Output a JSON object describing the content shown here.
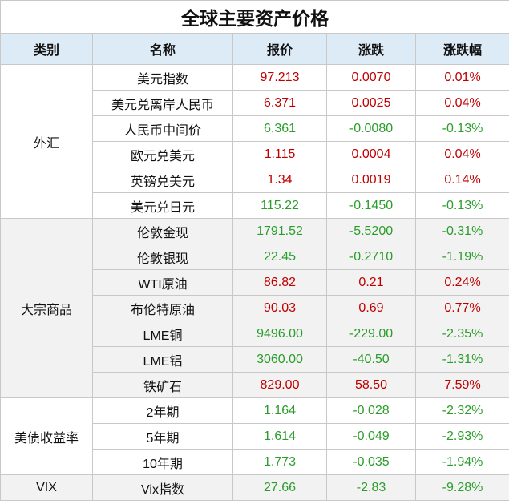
{
  "title": "全球主要资产价格",
  "header": [
    "类别",
    "名称",
    "报价",
    "涨跌",
    "涨跌幅"
  ],
  "colors": {
    "up": "#c00000",
    "down": "#2a9d2a",
    "header_bg": "#ddebf7",
    "shade_bg": "#f2f2f2"
  },
  "groups": [
    {
      "name": "外汇",
      "shaded": false,
      "rows": [
        [
          "美元指数",
          "97.213",
          "0.0070",
          "0.01%"
        ],
        [
          "美元兑离岸人民币",
          "6.371",
          "0.0025",
          "0.04%"
        ],
        [
          "人民币中间价",
          "6.361",
          "-0.0080",
          "-0.13%"
        ],
        [
          "欧元兑美元",
          "1.115",
          "0.0004",
          "0.04%"
        ],
        [
          "英镑兑美元",
          "1.34",
          "0.0019",
          "0.14%"
        ],
        [
          "美元兑日元",
          "115.22",
          "-0.1450",
          "-0.13%"
        ]
      ]
    },
    {
      "name": "大宗商品",
      "shaded": true,
      "rows": [
        [
          "伦敦金现",
          "1791.52",
          "-5.5200",
          "-0.31%"
        ],
        [
          "伦敦银现",
          "22.45",
          "-0.2710",
          "-1.19%"
        ],
        [
          "WTI原油",
          "86.82",
          "0.21",
          "0.24%"
        ],
        [
          "布伦特原油",
          "90.03",
          "0.69",
          "0.77%"
        ],
        [
          "LME铜",
          "9496.00",
          "-229.00",
          "-2.35%"
        ],
        [
          "LME铝",
          "3060.00",
          "-40.50",
          "-1.31%"
        ],
        [
          "铁矿石",
          "829.00",
          "58.50",
          "7.59%"
        ]
      ]
    },
    {
      "name": "美债收益率",
      "shaded": false,
      "rows": [
        [
          "2年期",
          "1.164",
          "-0.028",
          "-2.32%"
        ],
        [
          "5年期",
          "1.614",
          "-0.049",
          "-2.93%"
        ],
        [
          "10年期",
          "1.773",
          "-0.035",
          "-1.94%"
        ]
      ]
    },
    {
      "name": "VIX",
      "shaded": true,
      "rows": [
        [
          "Vix指数",
          "27.66",
          "-2.83",
          "-9.28%"
        ]
      ]
    }
  ]
}
